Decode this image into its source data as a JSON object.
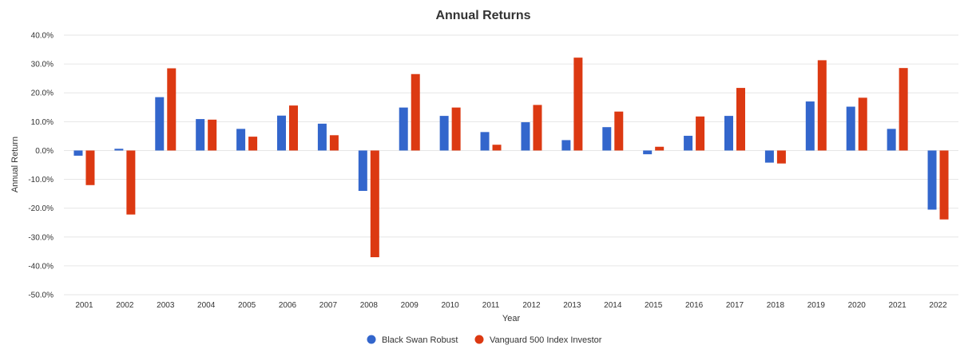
{
  "chart_data": {
    "type": "bar",
    "title": "Annual Returns",
    "xlabel": "Year",
    "ylabel": "Annual Return",
    "ylim": [
      -50,
      40
    ],
    "yticks": [
      40,
      30,
      20,
      10,
      0,
      -10,
      -20,
      -30,
      -40,
      -50
    ],
    "ytick_labels": [
      "40.0%",
      "30.0%",
      "20.0%",
      "10.0%",
      "0.0%",
      "-10.0%",
      "-20.0%",
      "-30.0%",
      "-40.0%",
      "-50.0%"
    ],
    "categories": [
      "2001",
      "2002",
      "2003",
      "2004",
      "2005",
      "2006",
      "2007",
      "2008",
      "2009",
      "2010",
      "2011",
      "2012",
      "2013",
      "2014",
      "2015",
      "2016",
      "2017",
      "2018",
      "2019",
      "2020",
      "2021",
      "2022"
    ],
    "series": [
      {
        "name": "Black Swan Robust",
        "color": "#3366cc",
        "values": [
          -1.8,
          0.6,
          18.5,
          10.9,
          7.5,
          12.1,
          9.3,
          -14.0,
          14.9,
          12.0,
          6.4,
          9.8,
          3.6,
          8.1,
          -1.3,
          5.1,
          12.0,
          -4.2,
          17.0,
          15.2,
          7.5,
          -20.5
        ]
      },
      {
        "name": "Vanguard 500 Index Investor",
        "color": "#dc3912",
        "values": [
          -12.0,
          -22.2,
          28.5,
          10.7,
          4.8,
          15.6,
          5.3,
          -37.0,
          26.5,
          14.9,
          2.0,
          15.8,
          32.2,
          13.5,
          1.3,
          11.8,
          21.7,
          -4.5,
          31.3,
          18.3,
          28.6,
          -23.9
        ]
      }
    ],
    "grid": true,
    "legend_position": "bottom"
  }
}
